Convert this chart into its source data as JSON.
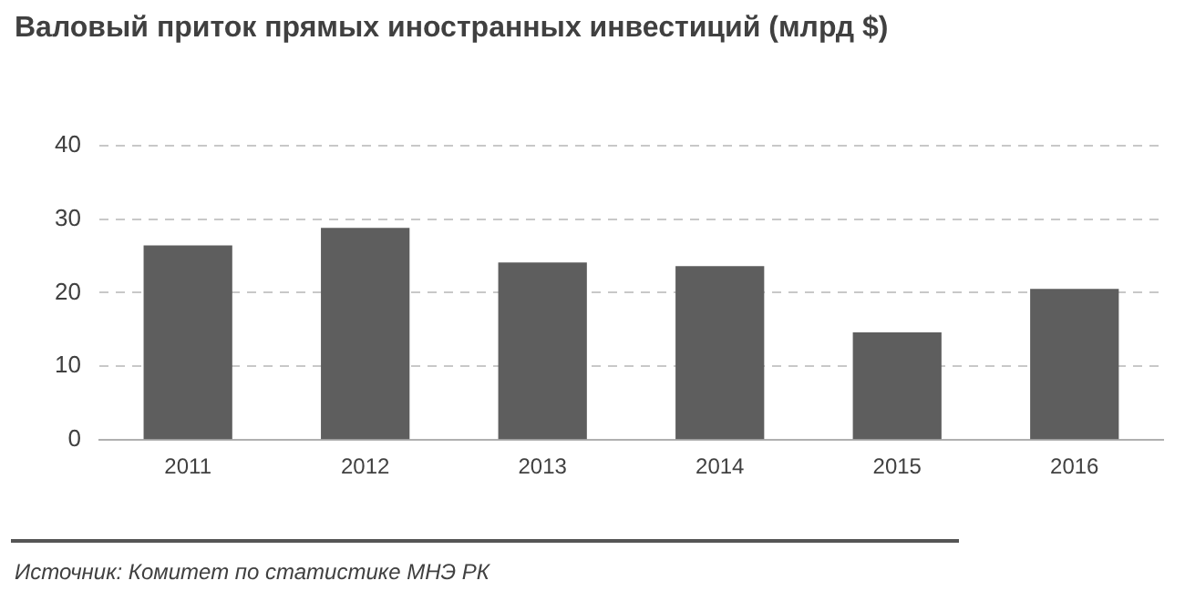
{
  "chart_data": {
    "type": "bar",
    "title": "Валовый приток прямых иностранных инвестиций (млрд $)",
    "categories": [
      "2011",
      "2012",
      "2013",
      "2014",
      "2015",
      "2016"
    ],
    "values": [
      26.4,
      28.8,
      24.1,
      23.6,
      14.6,
      20.5
    ],
    "color": "#5e5e5e",
    "ylim": [
      0,
      40
    ],
    "yticks": [
      0,
      10,
      20,
      30,
      40
    ],
    "grid": "y",
    "annotations": [
      "Источник:  Комитет по статистике МНЭ РК"
    ]
  }
}
